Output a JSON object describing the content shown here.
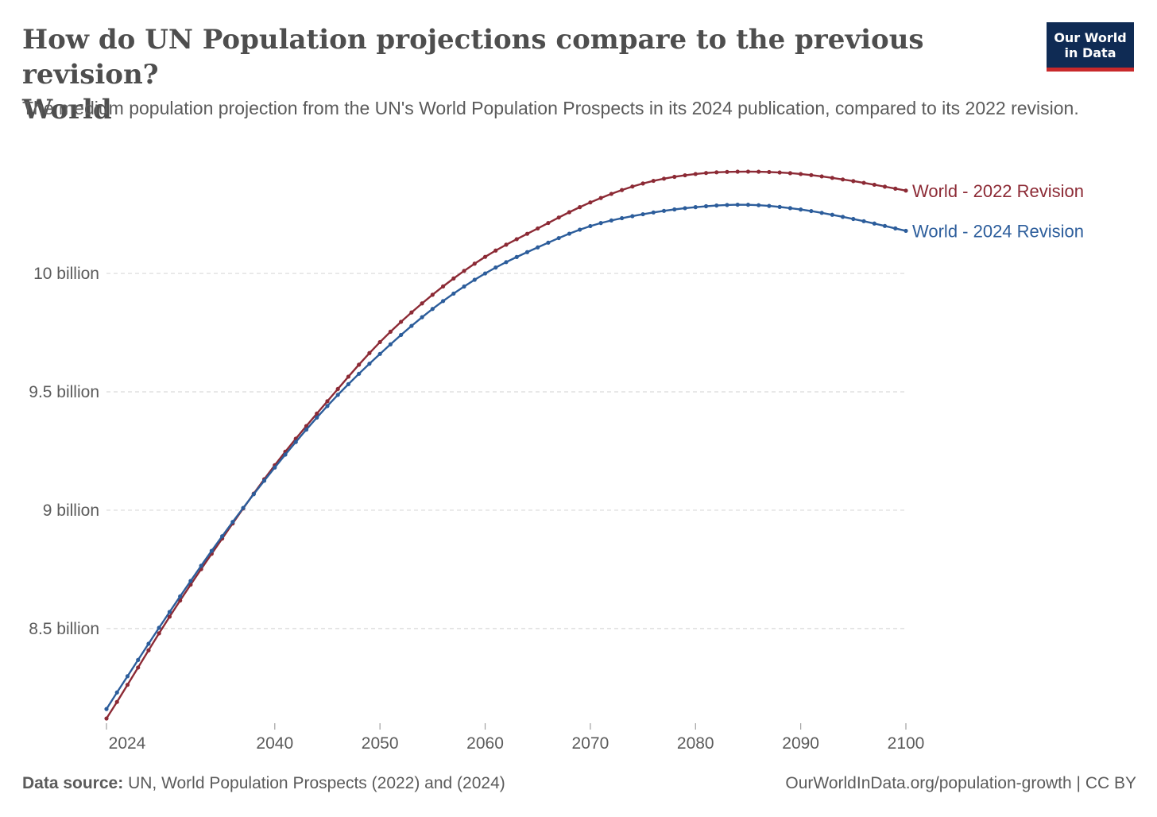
{
  "header": {
    "title_line1": "How do UN Population projections compare to the previous revision?",
    "title_line2": "World",
    "subtitle": "The medium population projection from the UN's World Population Prospects in its 2024 publication, compared to its 2022 revision.",
    "logo_line1": "Our World",
    "logo_line2": "in Data"
  },
  "footer": {
    "source_label": "Data source:",
    "source_text": "UN, World Population Prospects (2022) and (2024)",
    "url": "OurWorldInData.org/population-growth | CC BY"
  },
  "colors": {
    "series_2022": "#8c2a35",
    "series_2024": "#2c5d9b",
    "grid": "#d9d9d9",
    "axis": "#a0a0a0"
  },
  "chart_data": {
    "type": "line",
    "title": "How do UN Population projections compare to the previous revision? World",
    "xlabel": "",
    "ylabel": "",
    "xlim": [
      2024,
      2100
    ],
    "ylim": [
      8.1,
      10.45
    ],
    "x_ticks": [
      2024,
      2040,
      2050,
      2060,
      2070,
      2080,
      2090,
      2100
    ],
    "y_ticks": [
      {
        "value": 8.5,
        "label": "8.5 billion"
      },
      {
        "value": 9,
        "label": "9 billion"
      },
      {
        "value": 9.5,
        "label": "9.5 billion"
      },
      {
        "value": 10,
        "label": "10 billion"
      }
    ],
    "grid": "horizontal dashed",
    "legend": "inline labels at right end of lines",
    "series": [
      {
        "name": "World - 2022 Revision",
        "color": "#8c2a35",
        "knots": [
          [
            2024,
            8.12
          ],
          [
            2025,
            8.19
          ],
          [
            2030,
            8.55
          ],
          [
            2035,
            8.88
          ],
          [
            2040,
            9.19
          ],
          [
            2045,
            9.46
          ],
          [
            2050,
            9.71
          ],
          [
            2055,
            9.91
          ],
          [
            2060,
            10.07
          ],
          [
            2065,
            10.19
          ],
          [
            2070,
            10.3
          ],
          [
            2075,
            10.38
          ],
          [
            2080,
            10.42
          ],
          [
            2085,
            10.43
          ],
          [
            2090,
            10.42
          ],
          [
            2095,
            10.39
          ],
          [
            2100,
            10.35
          ]
        ]
      },
      {
        "name": "World - 2024 Revision",
        "color": "#2c5d9b",
        "knots": [
          [
            2024,
            8.16
          ],
          [
            2025,
            8.23
          ],
          [
            2030,
            8.57
          ],
          [
            2035,
            8.89
          ],
          [
            2040,
            9.18
          ],
          [
            2045,
            9.44
          ],
          [
            2050,
            9.66
          ],
          [
            2055,
            9.85
          ],
          [
            2060,
            10.0
          ],
          [
            2065,
            10.11
          ],
          [
            2070,
            10.2
          ],
          [
            2075,
            10.25
          ],
          [
            2080,
            10.28
          ],
          [
            2085,
            10.29
          ],
          [
            2090,
            10.27
          ],
          [
            2095,
            10.23
          ],
          [
            2100,
            10.18
          ]
        ]
      }
    ]
  }
}
